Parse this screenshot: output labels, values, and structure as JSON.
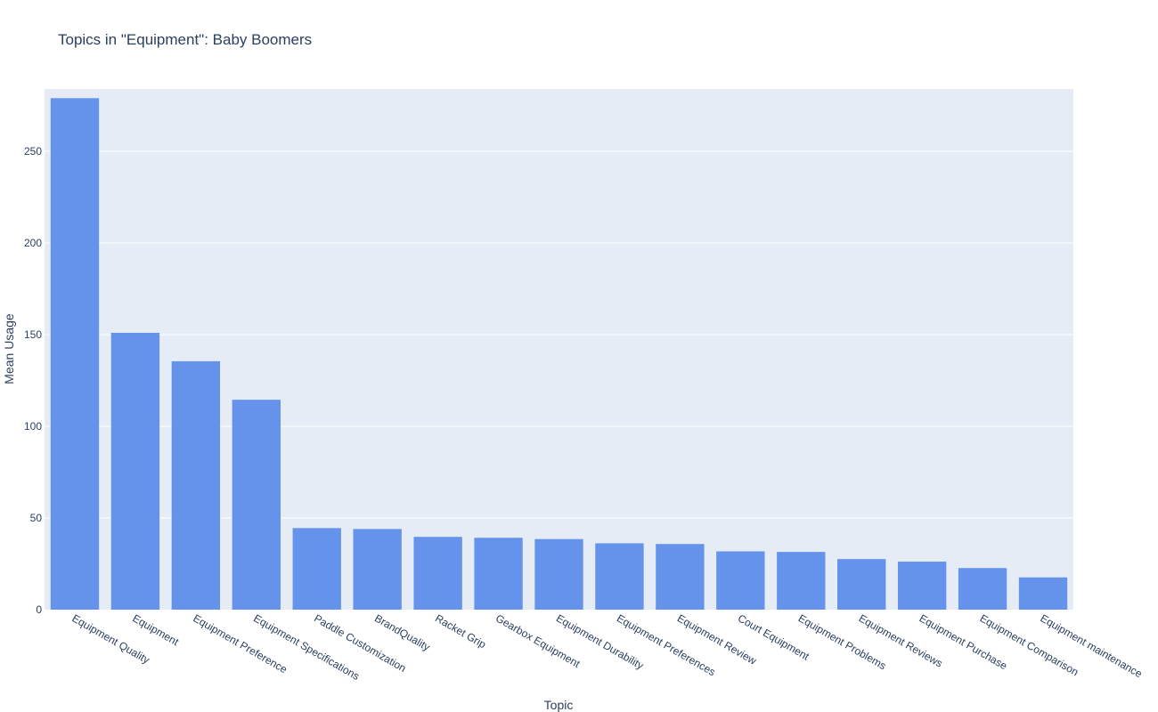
{
  "chart_data": {
    "type": "bar",
    "title": "Topics in \"Equipment\": Baby Boomers",
    "xlabel": "Topic",
    "ylabel": "Mean Usage",
    "categories": [
      "Equipment Quality",
      "Equipment",
      "Equipment Preference",
      "Equipment Specifications",
      "Paddle Customization",
      "BrandQuality",
      "Racket Grip",
      "Gearbox Equipment",
      "Equipment Durability",
      "Equipment Preferences",
      "Equipment Review",
      "Court Equipment",
      "Equipment Problems",
      "Equipment Reviews",
      "Equipment Purchase",
      "Equipment Comparison",
      "Equipment maintenance"
    ],
    "values": [
      279,
      151,
      135.5,
      114.5,
      44.5,
      44,
      39.7,
      39.2,
      38.5,
      36.2,
      35.8,
      31.8,
      31.5,
      27.6,
      26.2,
      22.7,
      17.6
    ],
    "ylim": [
      0,
      284
    ],
    "yticks": [
      0,
      50,
      100,
      150,
      200,
      250
    ],
    "grid": true,
    "legend": "none",
    "colors": {
      "bar": "#6593ec",
      "plot_bg": "#e5ecf6",
      "grid": "#ffffff",
      "text": "#2a3f5f"
    }
  }
}
